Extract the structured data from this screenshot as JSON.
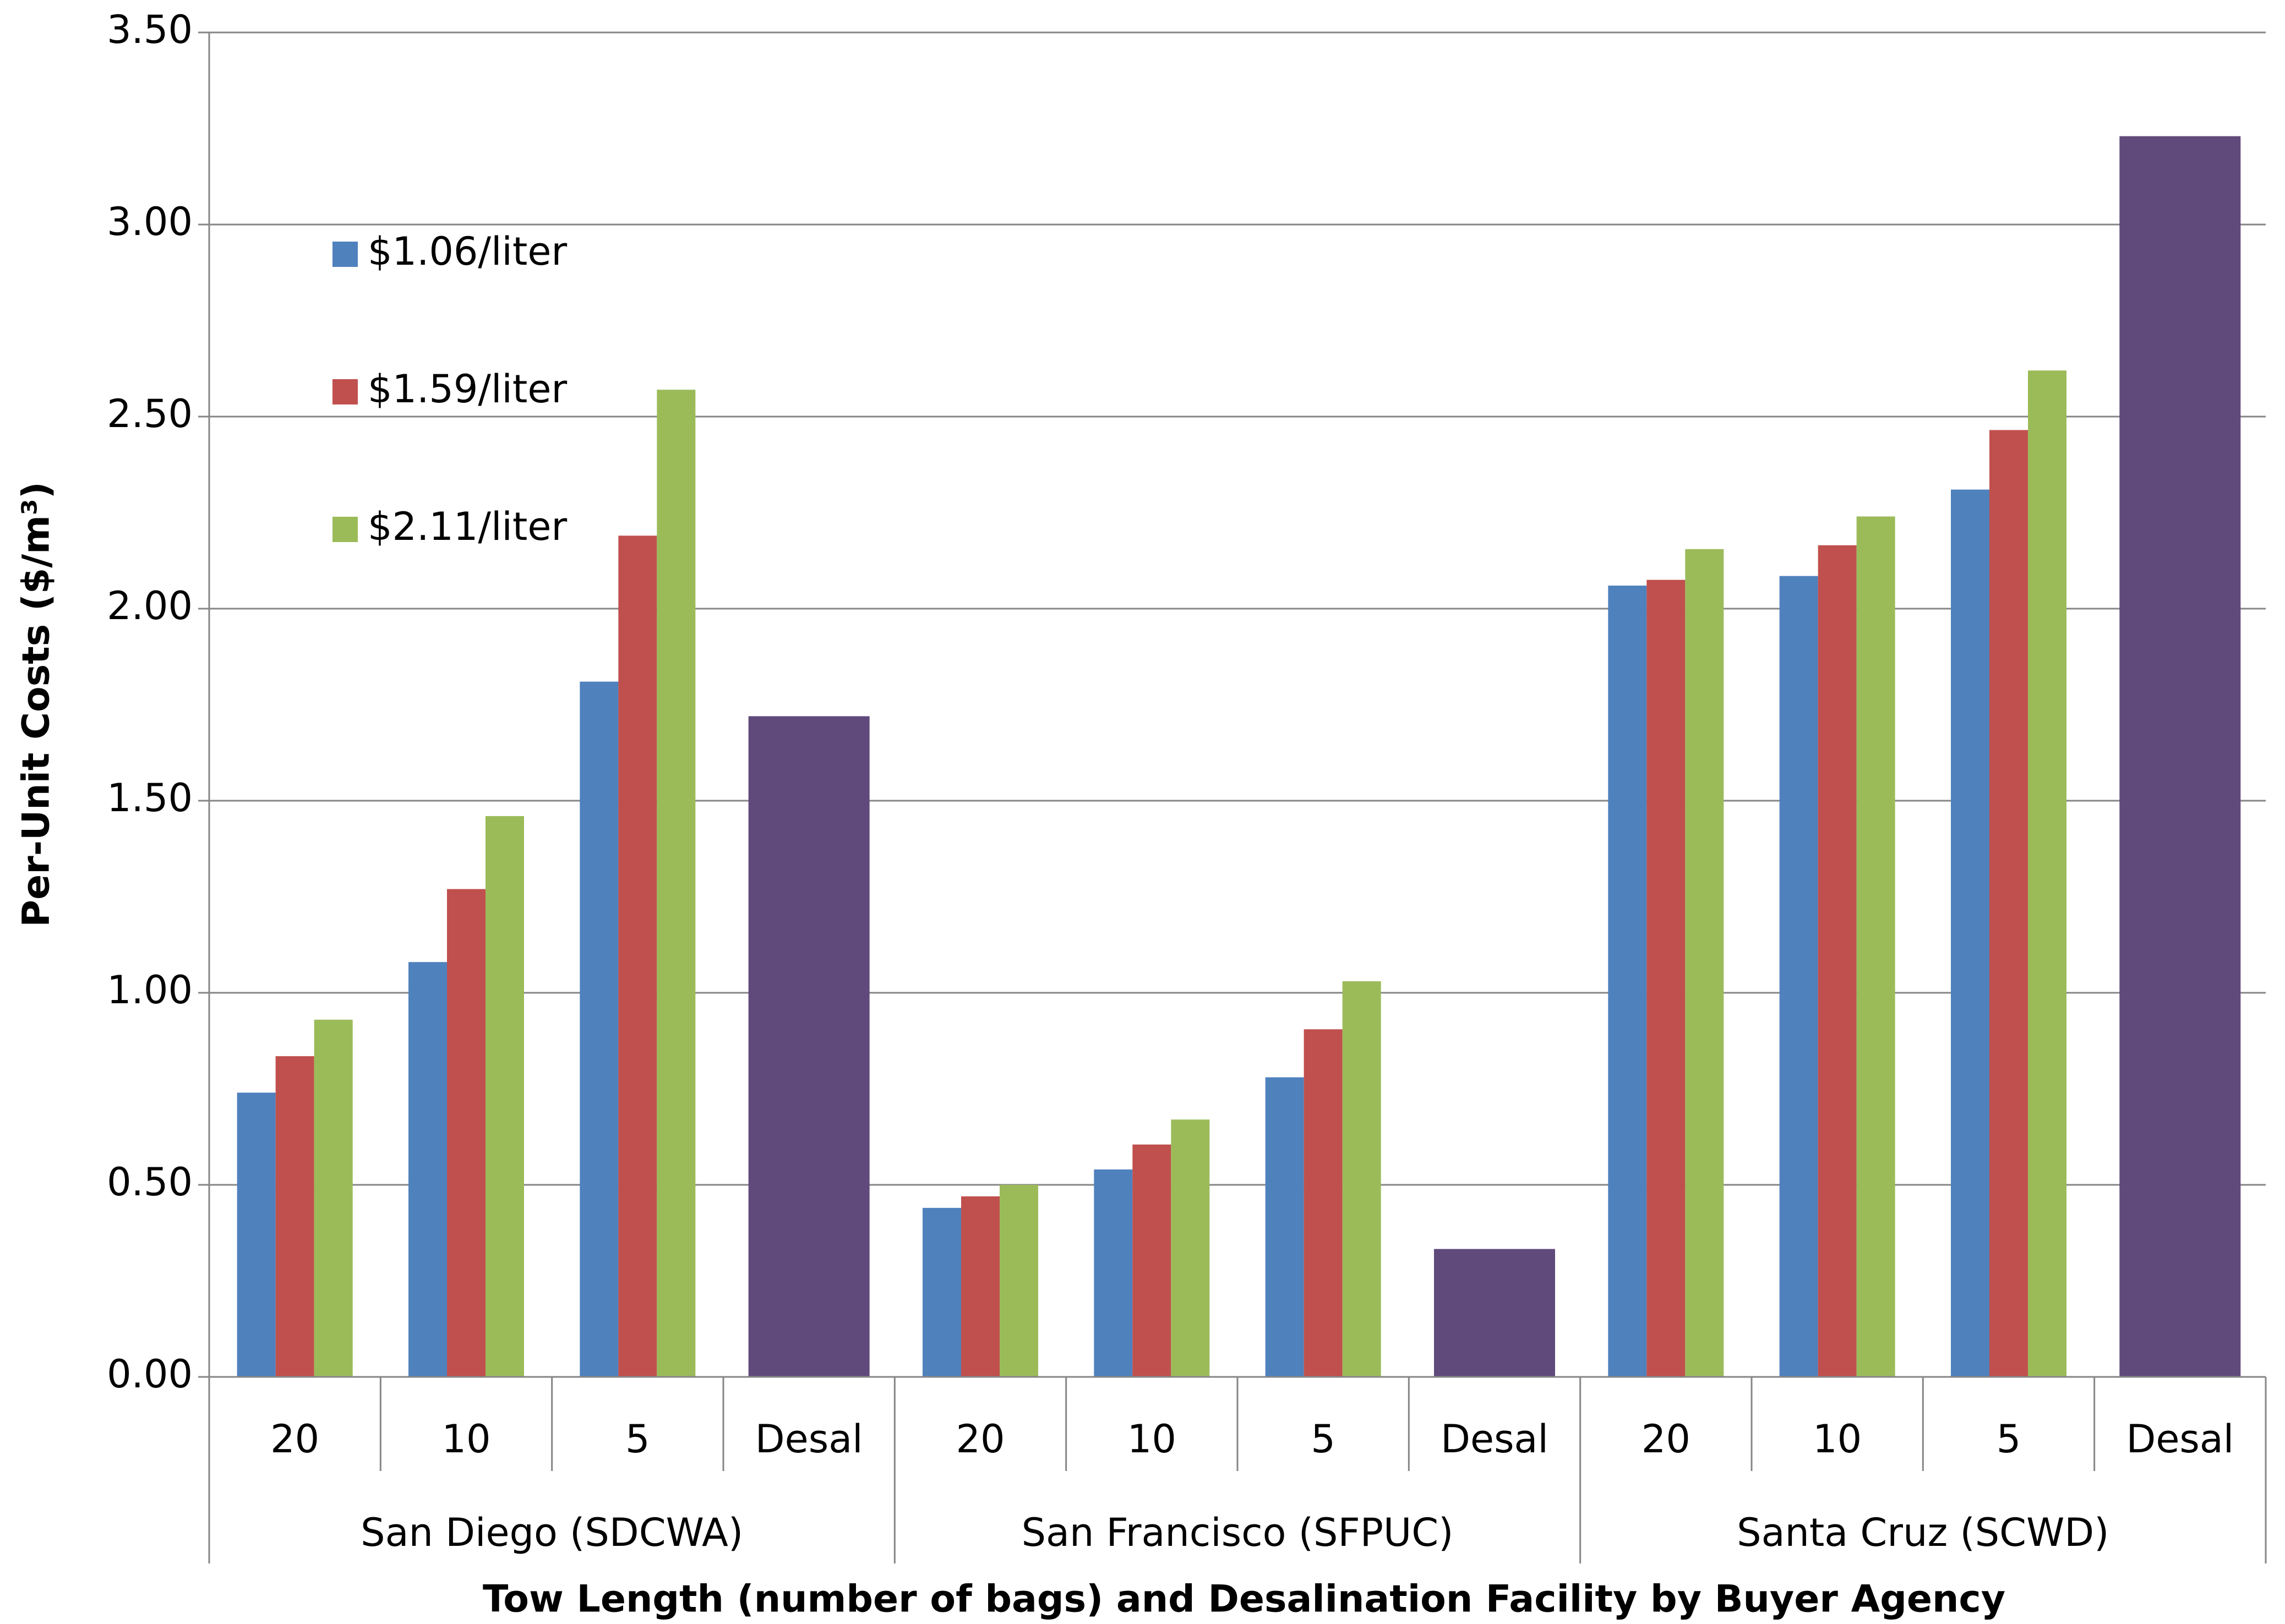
{
  "chart_data": {
    "type": "bar",
    "y_label": "Per-Unit Costs ($/m³)",
    "x_label": "Tow Length (number of bags) and Desalination Facility by Buyer Agency",
    "categories": [
      "20",
      "10",
      "5",
      "Desal",
      "20",
      "10",
      "5",
      "Desal",
      "20",
      "10",
      "5",
      "Desal"
    ],
    "groups": [
      "San Diego (SDCWA)",
      "San Francisco (SFPUC)",
      "Santa Cruz (SCWD)"
    ],
    "series": [
      {
        "name": "$1.06/liter",
        "color": "#4f81bd",
        "values": [
          0.74,
          1.08,
          1.81,
          null,
          0.44,
          0.54,
          0.78,
          null,
          2.06,
          2.085,
          2.31,
          null
        ]
      },
      {
        "name": "$1.59/liter",
        "color": "#c0504d",
        "values": [
          0.835,
          1.27,
          2.19,
          null,
          0.47,
          0.605,
          0.905,
          null,
          2.075,
          2.165,
          2.465,
          null
        ]
      },
      {
        "name": "$2.11/liter",
        "color": "#9bbb59",
        "values": [
          0.93,
          1.46,
          2.57,
          null,
          0.5,
          0.67,
          1.03,
          null,
          2.155,
          2.24,
          2.62,
          null
        ]
      },
      {
        "color": "#604a7b",
        "values": [
          null,
          null,
          null,
          1.72,
          null,
          null,
          null,
          0.333,
          null,
          null,
          null,
          3.23
        ]
      }
    ],
    "ylim": [
      0,
      3.5
    ],
    "yticks": [
      {
        "value": 0,
        "label": "0.00"
      },
      {
        "value": 0.5,
        "label": "0.50"
      },
      {
        "value": 1,
        "label": "1.00"
      },
      {
        "value": 1.5,
        "label": "1.50"
      },
      {
        "value": 2,
        "label": "2.00"
      },
      {
        "value": 2.5,
        "label": "2.50"
      },
      {
        "value": 3,
        "label": "3.00"
      },
      {
        "value": 3.5,
        "label": "3.50"
      }
    ],
    "grid": true
  }
}
